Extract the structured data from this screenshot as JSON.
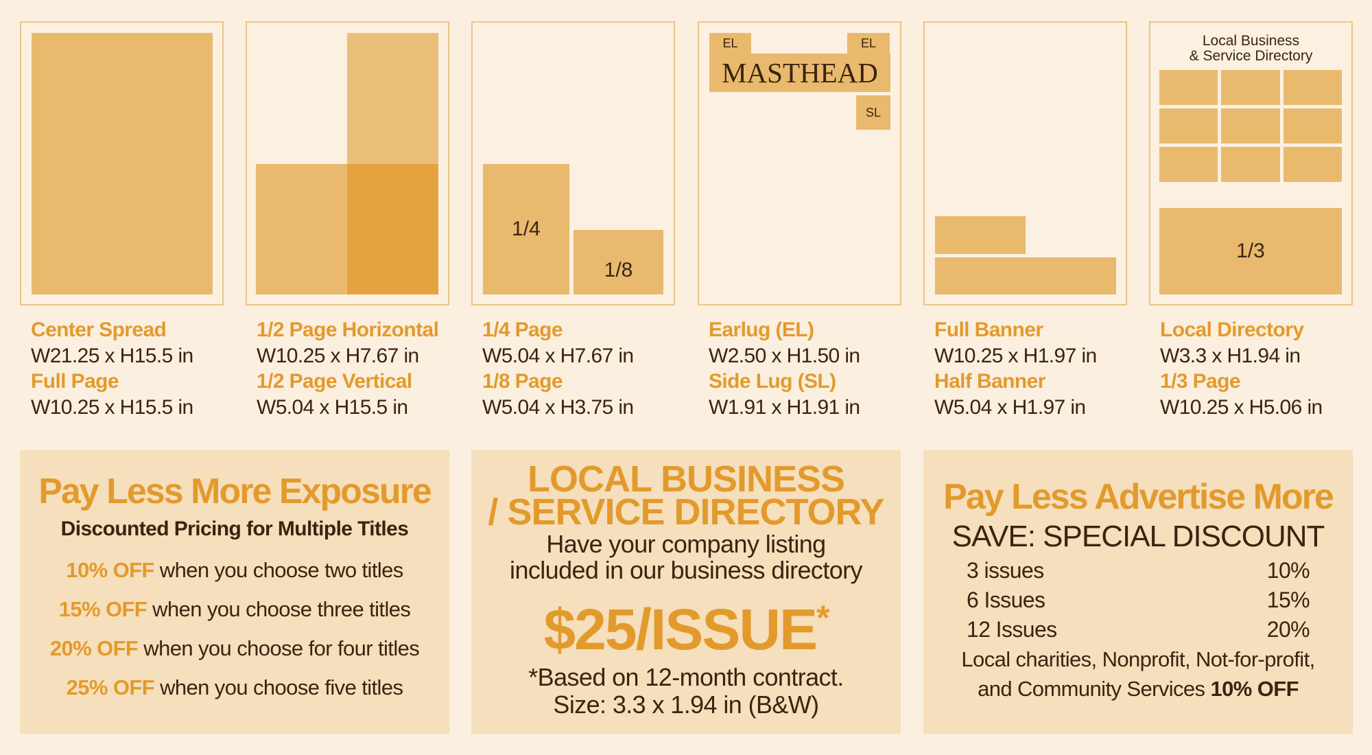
{
  "cards": [
    {
      "title1": "Center Spread",
      "dim1": "W21.25 x H15.5 in",
      "title2": "Full Page",
      "dim2": "W10.25 x H15.5 in"
    },
    {
      "title1": "1/2 Page Horizontal",
      "dim1": "W10.25 x H7.67 in",
      "title2": "1/2 Page Vertical",
      "dim2": "W5.04 x H15.5 in"
    },
    {
      "title1": "1/4 Page",
      "dim1": "W5.04 x H7.67 in",
      "title2": "1/8 Page",
      "dim2": "W5.04 x H3.75 in",
      "box1": "1/4",
      "box2": "1/8"
    },
    {
      "title1": "Earlug (EL)",
      "dim1": "W2.50 x H1.50 in",
      "title2": "Side Lug (SL)",
      "dim2": "W1.91 x H1.91 in",
      "el": "EL",
      "masthead": "MASTHEAD",
      "sl": "SL"
    },
    {
      "title1": "Full Banner",
      "dim1": "W10.25 x H1.97 in",
      "title2": "Half Banner",
      "dim2": "W5.04 x H1.97 in"
    },
    {
      "title1": "Local Directory",
      "dim1": "W3.3 x H1.94 in",
      "title2": "1/3 Page",
      "dim2": "W10.25 x H5.06 in",
      "dir_line1": "Local Business",
      "dir_line2": "& Service Directory",
      "box": "1/3"
    }
  ],
  "panel1": {
    "title": "Pay Less More Exposure",
    "subtitle": "Discounted Pricing for Multiple Titles",
    "rows": [
      {
        "off": "10% OFF",
        "text": " when you choose two titles"
      },
      {
        "off": "15% OFF",
        "text": " when you choose three titles"
      },
      {
        "off": "20% OFF",
        "text": " when you choose for four titles"
      },
      {
        "off": "25% OFF",
        "text": " when you choose five titles"
      }
    ]
  },
  "panel2": {
    "title1": "LOCAL BUSINESS",
    "title2": "/ SERVICE DIRECTORY",
    "desc1": "Have your company listing",
    "desc2": "included in our business directory",
    "price": "$25/ISSUE",
    "asterisk": "*",
    "note1": "*Based on 12-month contract.",
    "note2": "Size: 3.3 x 1.94 in (B&W)"
  },
  "panel3": {
    "title": "Pay Less Advertise More",
    "subtitle": "SAVE: SPECIAL DISCOUNT",
    "rows": [
      {
        "label": "3 issues",
        "value": "10%"
      },
      {
        "label": "6 Issues",
        "value": "15%"
      },
      {
        "label": "12 Issues",
        "value": "20%"
      }
    ],
    "footer1": "Local charities, Nonprofit, Not-for-profit,",
    "footer2": "and Community Services ",
    "footer_off": "10% OFF"
  },
  "colors": {
    "accent": "#e39a2d",
    "fill": "#e9b96e",
    "panel": "#f5dfbc",
    "text": "#3a2410"
  }
}
